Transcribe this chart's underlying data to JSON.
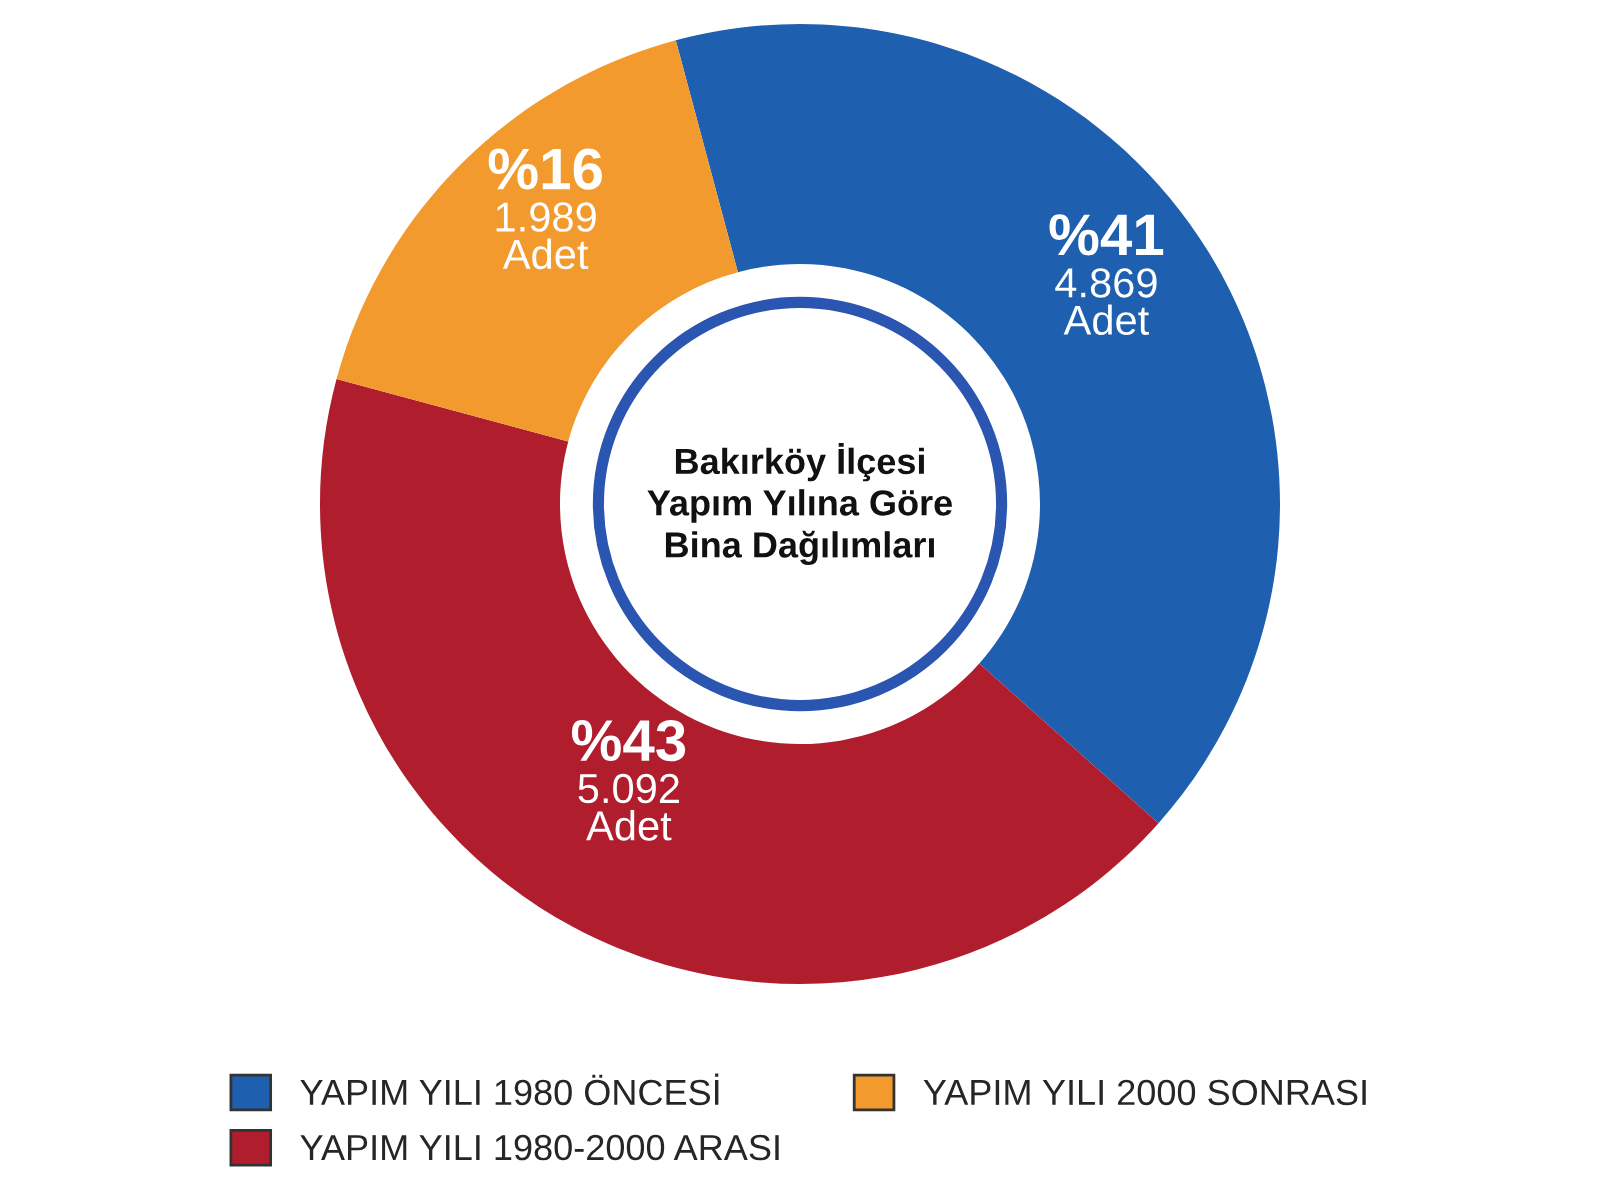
{
  "chart_data": {
    "type": "donut",
    "title": "Bakırköy İlçesi\nYapım Yılına Göre\nBina Dağılımları",
    "categories": [
      "YAPIM YILI 1980 ÖNCESİ",
      "YAPIM YILI 1980-2000 ARASI",
      "YAPIM YILI 2000 SONRASI"
    ],
    "values": [
      4869,
      5092,
      1989
    ],
    "colors": [
      "#1f5fb0",
      "#b01e2e",
      "#f39a2e"
    ],
    "value_labels": [
      "%41\n4.869\nAdet",
      "%43\n5.092\nAdet",
      "%16\n1.989\nAdet"
    ],
    "legend": "bottom"
  }
}
